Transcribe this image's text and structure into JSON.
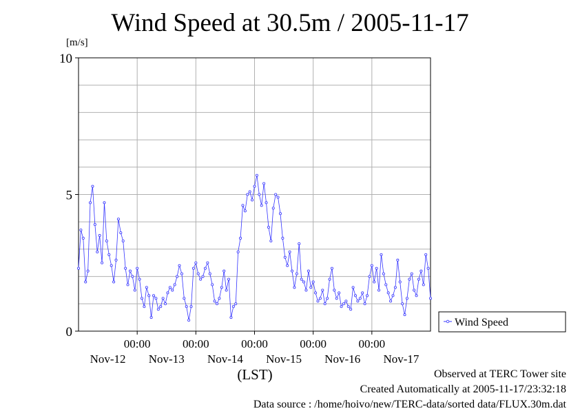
{
  "chart_data": {
    "type": "line",
    "title": "Wind Speed at 30.5m / 2005-11-17",
    "ylabel": "[m/s]",
    "xlabel": "(LST)",
    "ylim": [
      0,
      10
    ],
    "y_ticks": [
      0,
      5,
      10
    ],
    "x_time_ticks": [
      "00:00",
      "00:00",
      "00:00",
      "00:00",
      "00:00"
    ],
    "x_date_labels": [
      "Nov-12",
      "Nov-13",
      "Nov-14",
      "Nov-15",
      "Nov-16",
      "Nov-17"
    ],
    "x_range_days": [
      0,
      6
    ],
    "grid": true,
    "legend": "right",
    "series": [
      {
        "name": "Wind Speed",
        "color": "#3333ff",
        "x_days": [
          0.0,
          0.04,
          0.08,
          0.12,
          0.16,
          0.2,
          0.24,
          0.28,
          0.32,
          0.36,
          0.4,
          0.44,
          0.48,
          0.52,
          0.56,
          0.6,
          0.64,
          0.68,
          0.72,
          0.76,
          0.8,
          0.84,
          0.88,
          0.92,
          0.96,
          1.0,
          1.04,
          1.08,
          1.12,
          1.16,
          1.2,
          1.24,
          1.28,
          1.32,
          1.36,
          1.4,
          1.44,
          1.48,
          1.52,
          1.56,
          1.6,
          1.64,
          1.68,
          1.72,
          1.76,
          1.8,
          1.84,
          1.88,
          1.92,
          1.96,
          2.0,
          2.04,
          2.08,
          2.12,
          2.16,
          2.2,
          2.24,
          2.28,
          2.32,
          2.36,
          2.4,
          2.44,
          2.48,
          2.52,
          2.56,
          2.6,
          2.64,
          2.68,
          2.72,
          2.76,
          2.8,
          2.84,
          2.88,
          2.92,
          2.96,
          3.0,
          3.04,
          3.08,
          3.12,
          3.16,
          3.2,
          3.24,
          3.28,
          3.32,
          3.36,
          3.4,
          3.44,
          3.48,
          3.52,
          3.56,
          3.6,
          3.64,
          3.68,
          3.72,
          3.76,
          3.8,
          3.84,
          3.88,
          3.92,
          3.96,
          4.0,
          4.04,
          4.08,
          4.12,
          4.16,
          4.2,
          4.24,
          4.28,
          4.32,
          4.36,
          4.4,
          4.44,
          4.48,
          4.52,
          4.56,
          4.6,
          4.64,
          4.68,
          4.72,
          4.76,
          4.8,
          4.84,
          4.88,
          4.92,
          4.96,
          5.0,
          5.04,
          5.08,
          5.12,
          5.16,
          5.2,
          5.24,
          5.28,
          5.32,
          5.36,
          5.4,
          5.44,
          5.48,
          5.52,
          5.56,
          5.6,
          5.64,
          5.68,
          5.72,
          5.76,
          5.8,
          5.84,
          5.88,
          5.92,
          5.96,
          6.0
        ],
        "values": [
          2.3,
          3.7,
          3.4,
          1.8,
          2.2,
          4.7,
          5.3,
          3.9,
          2.9,
          3.5,
          2.5,
          4.7,
          3.3,
          2.8,
          2.4,
          1.8,
          2.6,
          4.1,
          3.6,
          3.3,
          2.3,
          1.7,
          2.2,
          2.0,
          1.5,
          2.3,
          1.9,
          1.2,
          0.9,
          1.6,
          1.3,
          0.5,
          1.3,
          1.2,
          0.8,
          0.9,
          1.2,
          1.0,
          1.4,
          1.6,
          1.5,
          1.7,
          2.0,
          2.4,
          2.1,
          1.2,
          0.9,
          0.4,
          0.9,
          2.3,
          2.5,
          2.1,
          1.9,
          2.0,
          2.3,
          2.5,
          2.1,
          1.7,
          1.1,
          1.0,
          1.2,
          1.6,
          2.2,
          1.5,
          1.9,
          0.5,
          0.9,
          1.0,
          2.9,
          3.4,
          4.6,
          4.4,
          5.0,
          5.1,
          4.8,
          5.3,
          5.7,
          5.0,
          4.6,
          5.4,
          4.7,
          3.8,
          3.3,
          4.5,
          5.0,
          4.9,
          4.3,
          3.4,
          2.7,
          2.4,
          2.9,
          2.2,
          1.6,
          2.1,
          3.2,
          1.9,
          1.8,
          1.5,
          2.2,
          1.6,
          1.8,
          1.4,
          1.1,
          1.2,
          1.5,
          1.0,
          1.2,
          1.9,
          2.3,
          1.5,
          1.2,
          1.4,
          0.9,
          1.0,
          1.1,
          0.9,
          0.8,
          1.6,
          1.3,
          1.1,
          1.2,
          1.4,
          1.0,
          1.3,
          2.0,
          2.4,
          1.8,
          2.3,
          1.5,
          2.8,
          2.1,
          1.7,
          1.4,
          1.1,
          1.3,
          1.6,
          2.6,
          1.8,
          1.0,
          0.6,
          1.2,
          1.9,
          2.1,
          1.5,
          1.3,
          1.9,
          2.2,
          1.7,
          2.8,
          2.3,
          1.2
        ]
      }
    ]
  },
  "footer": {
    "line1": "Observed at TERC Tower site",
    "line2": "Created Automatically at 2005-11-17/23:32:18",
    "line3": "Data source : /home/hoivo/new/TERC-data/sorted  data/FLUX.30m.dat"
  }
}
